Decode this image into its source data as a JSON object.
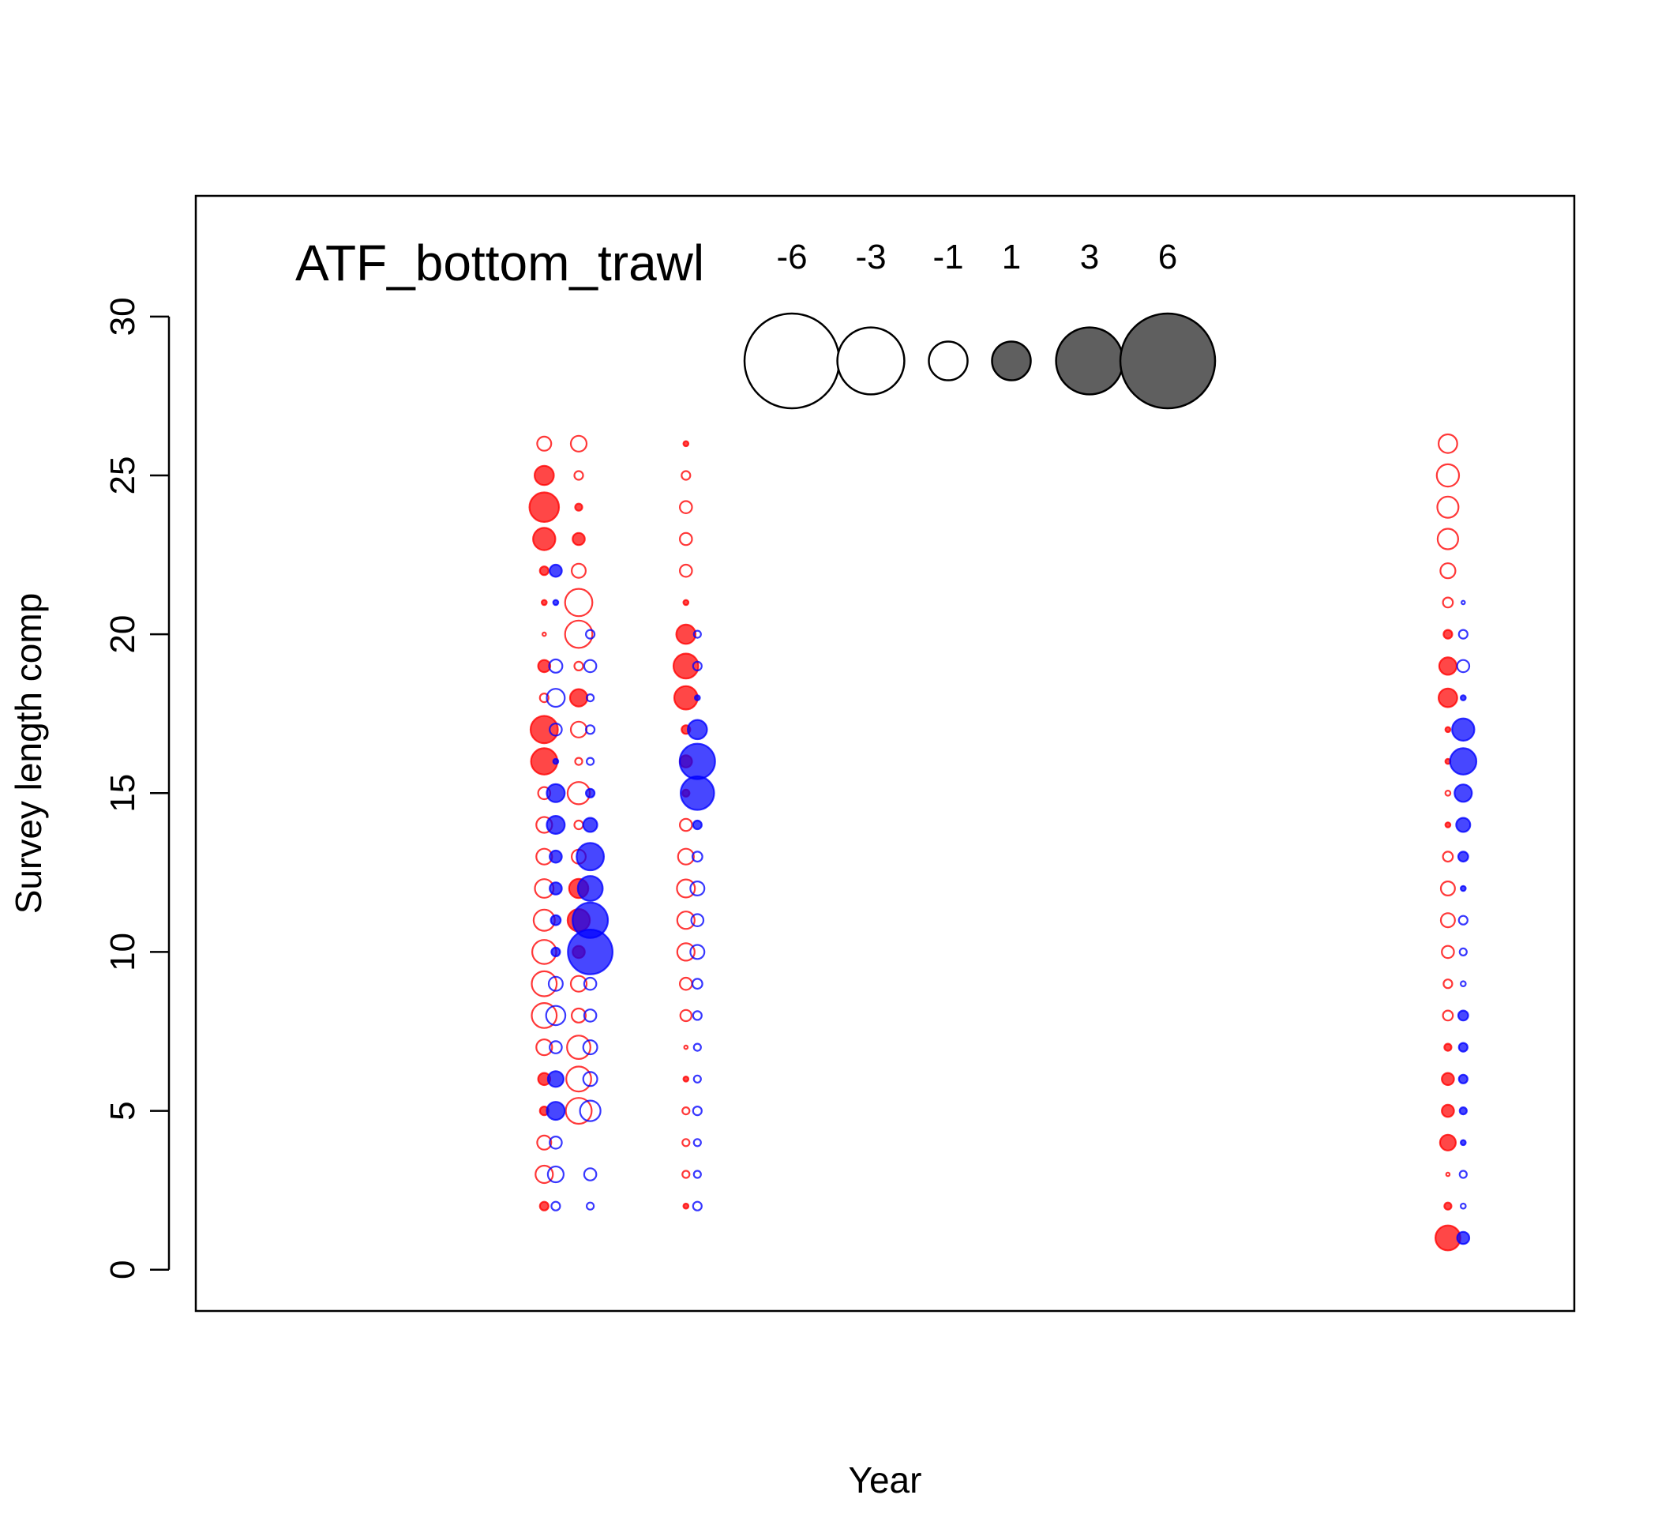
{
  "chart_data": {
    "type": "scatter",
    "subtype": "bubble",
    "panel_label": "ATF_bottom_trawl",
    "xlabel": "Year",
    "ylabel": "Survey length comp",
    "xlim": [
      1978,
      1996
    ],
    "ylim": [
      -1.3,
      33.8
    ],
    "yticks": [
      0,
      5,
      10,
      15,
      20,
      25,
      30
    ],
    "x_ticks_shown": false,
    "grid": false,
    "legend": {
      "placement": "top-center",
      "entries": [
        {
          "label": "-6",
          "value": -6
        },
        {
          "label": "-3",
          "value": -3
        },
        {
          "label": "-1",
          "value": -1
        },
        {
          "label": "1",
          "value": 1
        },
        {
          "label": "3",
          "value": 3
        },
        {
          "label": "6",
          "value": 6
        }
      ],
      "negative_style": "open",
      "positive_style": "filled",
      "fill_color": "#5f5f5f"
    },
    "colors": {
      "series_1": "#ff0000",
      "series_2": "#0000ff"
    },
    "series": [
      {
        "color": "#ff0000",
        "points": [
          {
            "x": 1982.55,
            "y": 26,
            "v": -0.8
          },
          {
            "x": 1982.55,
            "y": 25,
            "v": 1.5
          },
          {
            "x": 1982.55,
            "y": 24,
            "v": 3.5
          },
          {
            "x": 1982.55,
            "y": 23,
            "v": 2.0
          },
          {
            "x": 1982.55,
            "y": 22,
            "v": 0.3
          },
          {
            "x": 1982.55,
            "y": 21,
            "v": 0.1
          },
          {
            "x": 1982.55,
            "y": 20,
            "v": -0.05
          },
          {
            "x": 1982.55,
            "y": 19,
            "v": 0.6
          },
          {
            "x": 1982.55,
            "y": 18,
            "v": -0.3
          },
          {
            "x": 1982.55,
            "y": 17,
            "v": 3.0
          },
          {
            "x": 1982.55,
            "y": 16,
            "v": 2.8
          },
          {
            "x": 1982.55,
            "y": 15,
            "v": -0.6
          },
          {
            "x": 1982.55,
            "y": 14,
            "v": -1.0
          },
          {
            "x": 1982.55,
            "y": 13,
            "v": -1.0
          },
          {
            "x": 1982.55,
            "y": 12,
            "v": -1.4
          },
          {
            "x": 1982.55,
            "y": 11,
            "v": -1.8
          },
          {
            "x": 1982.55,
            "y": 10,
            "v": -2.3
          },
          {
            "x": 1982.55,
            "y": 9,
            "v": -2.5
          },
          {
            "x": 1982.55,
            "y": 8,
            "v": -2.5
          },
          {
            "x": 1982.55,
            "y": 7,
            "v": -1.0
          },
          {
            "x": 1982.55,
            "y": 6,
            "v": 0.6
          },
          {
            "x": 1982.55,
            "y": 5,
            "v": 0.3
          },
          {
            "x": 1982.55,
            "y": 4,
            "v": -0.8
          },
          {
            "x": 1982.55,
            "y": 3,
            "v": -1.2
          },
          {
            "x": 1982.55,
            "y": 2,
            "v": 0.3
          },
          {
            "x": 1983.0,
            "y": 26,
            "v": -1.0
          },
          {
            "x": 1983.0,
            "y": 25,
            "v": -0.3
          },
          {
            "x": 1983.0,
            "y": 24,
            "v": 0.2
          },
          {
            "x": 1983.0,
            "y": 23,
            "v": 0.6
          },
          {
            "x": 1983.0,
            "y": 22,
            "v": -0.8
          },
          {
            "x": 1983.0,
            "y": 21,
            "v": -3.0
          },
          {
            "x": 1983.0,
            "y": 20,
            "v": -3.0
          },
          {
            "x": 1983.0,
            "y": 19,
            "v": -0.3
          },
          {
            "x": 1983.0,
            "y": 18,
            "v": 1.2
          },
          {
            "x": 1983.0,
            "y": 17,
            "v": -1.0
          },
          {
            "x": 1983.0,
            "y": 16,
            "v": -0.2
          },
          {
            "x": 1983.0,
            "y": 15,
            "v": -2.0
          },
          {
            "x": 1983.0,
            "y": 14,
            "v": -0.3
          },
          {
            "x": 1983.0,
            "y": 13,
            "v": -0.8
          },
          {
            "x": 1983.0,
            "y": 12,
            "v": 1.5
          },
          {
            "x": 1983.0,
            "y": 11,
            "v": 2.0
          },
          {
            "x": 1983.0,
            "y": 10,
            "v": 0.6
          },
          {
            "x": 1983.0,
            "y": 9,
            "v": -1.0
          },
          {
            "x": 1983.0,
            "y": 8,
            "v": -0.8
          },
          {
            "x": 1983.0,
            "y": 7,
            "v": -2.2
          },
          {
            "x": 1983.0,
            "y": 6,
            "v": -2.5
          },
          {
            "x": 1983.0,
            "y": 5,
            "v": -2.7
          },
          {
            "x": 1984.4,
            "y": 26,
            "v": 0.1
          },
          {
            "x": 1984.4,
            "y": 25,
            "v": -0.3
          },
          {
            "x": 1984.4,
            "y": 24,
            "v": -0.6
          },
          {
            "x": 1984.4,
            "y": 23,
            "v": -0.6
          },
          {
            "x": 1984.4,
            "y": 22,
            "v": -0.6
          },
          {
            "x": 1984.4,
            "y": 21,
            "v": 0.1
          },
          {
            "x": 1984.4,
            "y": 20,
            "v": 1.5
          },
          {
            "x": 1984.4,
            "y": 19,
            "v": 2.5
          },
          {
            "x": 1984.4,
            "y": 18,
            "v": 2.2
          },
          {
            "x": 1984.4,
            "y": 17,
            "v": 0.3
          },
          {
            "x": 1984.4,
            "y": 16,
            "v": 0.6
          },
          {
            "x": 1984.4,
            "y": 15,
            "v": 0.2
          },
          {
            "x": 1984.4,
            "y": 14,
            "v": -0.6
          },
          {
            "x": 1984.4,
            "y": 13,
            "v": -1.0
          },
          {
            "x": 1984.4,
            "y": 12,
            "v": -1.3
          },
          {
            "x": 1984.4,
            "y": 11,
            "v": -1.2
          },
          {
            "x": 1984.4,
            "y": 10,
            "v": -1.2
          },
          {
            "x": 1984.4,
            "y": 9,
            "v": -0.6
          },
          {
            "x": 1984.4,
            "y": 8,
            "v": -0.5
          },
          {
            "x": 1984.4,
            "y": 7,
            "v": -0.05
          },
          {
            "x": 1984.4,
            "y": 6,
            "v": 0.1
          },
          {
            "x": 1984.4,
            "y": 5,
            "v": -0.2
          },
          {
            "x": 1984.4,
            "y": 4,
            "v": -0.2
          },
          {
            "x": 1984.4,
            "y": 3,
            "v": -0.2
          },
          {
            "x": 1984.4,
            "y": 2,
            "v": 0.1
          },
          {
            "x": 1994.35,
            "y": 26,
            "v": -1.4
          },
          {
            "x": 1994.35,
            "y": 25,
            "v": -2.0
          },
          {
            "x": 1994.35,
            "y": 24,
            "v": -1.8
          },
          {
            "x": 1994.35,
            "y": 23,
            "v": -1.7
          },
          {
            "x": 1994.35,
            "y": 22,
            "v": -0.9
          },
          {
            "x": 1994.35,
            "y": 21,
            "v": -0.4
          },
          {
            "x": 1994.35,
            "y": 20,
            "v": 0.3
          },
          {
            "x": 1994.35,
            "y": 19,
            "v": 1.2
          },
          {
            "x": 1994.35,
            "y": 18,
            "v": 1.4
          },
          {
            "x": 1994.35,
            "y": 17,
            "v": 0.1
          },
          {
            "x": 1994.35,
            "y": 16,
            "v": 0.1
          },
          {
            "x": 1994.35,
            "y": 15,
            "v": -0.1
          },
          {
            "x": 1994.35,
            "y": 14,
            "v": 0.1
          },
          {
            "x": 1994.35,
            "y": 13,
            "v": -0.4
          },
          {
            "x": 1994.35,
            "y": 12,
            "v": -0.8
          },
          {
            "x": 1994.35,
            "y": 11,
            "v": -0.8
          },
          {
            "x": 1994.35,
            "y": 10,
            "v": -0.6
          },
          {
            "x": 1994.35,
            "y": 9,
            "v": -0.3
          },
          {
            "x": 1994.35,
            "y": 8,
            "v": -0.4
          },
          {
            "x": 1994.35,
            "y": 7,
            "v": 0.2
          },
          {
            "x": 1994.35,
            "y": 6,
            "v": 0.6
          },
          {
            "x": 1994.35,
            "y": 5,
            "v": 0.6
          },
          {
            "x": 1994.35,
            "y": 4,
            "v": 1.0
          },
          {
            "x": 1994.35,
            "y": 3,
            "v": -0.05
          },
          {
            "x": 1994.35,
            "y": 2,
            "v": 0.2
          },
          {
            "x": 1994.35,
            "y": 1,
            "v": 2.5
          }
        ]
      },
      {
        "color": "#0000ff",
        "points": [
          {
            "x": 1982.7,
            "y": 22,
            "v": 0.6
          },
          {
            "x": 1982.7,
            "y": 21,
            "v": 0.1
          },
          {
            "x": 1982.7,
            "y": 19,
            "v": -0.7
          },
          {
            "x": 1982.7,
            "y": 18,
            "v": -1.3
          },
          {
            "x": 1982.7,
            "y": 17,
            "v": -0.6
          },
          {
            "x": 1982.7,
            "y": 16,
            "v": 0.1
          },
          {
            "x": 1982.7,
            "y": 15,
            "v": 1.3
          },
          {
            "x": 1982.7,
            "y": 14,
            "v": 1.3
          },
          {
            "x": 1982.7,
            "y": 13,
            "v": 0.6
          },
          {
            "x": 1982.7,
            "y": 12,
            "v": 0.6
          },
          {
            "x": 1982.7,
            "y": 11,
            "v": 0.4
          },
          {
            "x": 1982.7,
            "y": 10,
            "v": 0.3
          },
          {
            "x": 1982.7,
            "y": 9,
            "v": -0.8
          },
          {
            "x": 1982.7,
            "y": 8,
            "v": -1.5
          },
          {
            "x": 1982.7,
            "y": 7,
            "v": -0.6
          },
          {
            "x": 1982.7,
            "y": 6,
            "v": 1.0
          },
          {
            "x": 1982.7,
            "y": 5,
            "v": 1.3
          },
          {
            "x": 1982.7,
            "y": 4,
            "v": -0.6
          },
          {
            "x": 1982.7,
            "y": 3,
            "v": -1.0
          },
          {
            "x": 1982.7,
            "y": 2,
            "v": -0.3
          },
          {
            "x": 1983.15,
            "y": 20,
            "v": -0.3
          },
          {
            "x": 1983.15,
            "y": 19,
            "v": -0.6
          },
          {
            "x": 1983.15,
            "y": 18,
            "v": -0.2
          },
          {
            "x": 1983.15,
            "y": 17,
            "v": -0.3
          },
          {
            "x": 1983.15,
            "y": 16,
            "v": -0.2
          },
          {
            "x": 1983.15,
            "y": 15,
            "v": 0.3
          },
          {
            "x": 1983.15,
            "y": 14,
            "v": 0.8
          },
          {
            "x": 1983.15,
            "y": 13,
            "v": 3.0
          },
          {
            "x": 1983.15,
            "y": 12,
            "v": 2.5
          },
          {
            "x": 1983.15,
            "y": 11,
            "v": 5.0
          },
          {
            "x": 1983.15,
            "y": 10,
            "v": 8.0
          },
          {
            "x": 1983.15,
            "y": 9,
            "v": -0.6
          },
          {
            "x": 1983.15,
            "y": 8,
            "v": -0.6
          },
          {
            "x": 1983.15,
            "y": 7,
            "v": -0.8
          },
          {
            "x": 1983.15,
            "y": 6,
            "v": -0.8
          },
          {
            "x": 1983.15,
            "y": 5,
            "v": -1.7
          },
          {
            "x": 1983.15,
            "y": 3,
            "v": -0.6
          },
          {
            "x": 1983.15,
            "y": 2,
            "v": -0.2
          },
          {
            "x": 1984.55,
            "y": 20,
            "v": -0.2
          },
          {
            "x": 1984.55,
            "y": 19,
            "v": -0.3
          },
          {
            "x": 1984.55,
            "y": 18,
            "v": 0.1
          },
          {
            "x": 1984.55,
            "y": 17,
            "v": 1.5
          },
          {
            "x": 1984.55,
            "y": 16,
            "v": 5.0
          },
          {
            "x": 1984.55,
            "y": 15,
            "v": 4.5
          },
          {
            "x": 1984.55,
            "y": 14,
            "v": 0.3
          },
          {
            "x": 1984.55,
            "y": 13,
            "v": -0.4
          },
          {
            "x": 1984.55,
            "y": 12,
            "v": -0.8
          },
          {
            "x": 1984.55,
            "y": 11,
            "v": -0.6
          },
          {
            "x": 1984.55,
            "y": 10,
            "v": -0.8
          },
          {
            "x": 1984.55,
            "y": 9,
            "v": -0.4
          },
          {
            "x": 1984.55,
            "y": 8,
            "v": -0.3
          },
          {
            "x": 1984.55,
            "y": 7,
            "v": -0.2
          },
          {
            "x": 1984.55,
            "y": 6,
            "v": -0.2
          },
          {
            "x": 1984.55,
            "y": 5,
            "v": -0.3
          },
          {
            "x": 1984.55,
            "y": 4,
            "v": -0.2
          },
          {
            "x": 1984.55,
            "y": 3,
            "v": -0.2
          },
          {
            "x": 1984.55,
            "y": 2,
            "v": -0.3
          },
          {
            "x": 1994.55,
            "y": 21,
            "v": -0.05
          },
          {
            "x": 1994.55,
            "y": 20,
            "v": -0.3
          },
          {
            "x": 1994.55,
            "y": 19,
            "v": -0.6
          },
          {
            "x": 1994.55,
            "y": 18,
            "v": 0.1
          },
          {
            "x": 1994.55,
            "y": 17,
            "v": 2.0
          },
          {
            "x": 1994.55,
            "y": 16,
            "v": 2.8
          },
          {
            "x": 1994.55,
            "y": 15,
            "v": 1.2
          },
          {
            "x": 1994.55,
            "y": 14,
            "v": 0.8
          },
          {
            "x": 1994.55,
            "y": 13,
            "v": 0.4
          },
          {
            "x": 1994.55,
            "y": 12,
            "v": 0.1
          },
          {
            "x": 1994.55,
            "y": 11,
            "v": -0.3
          },
          {
            "x": 1994.55,
            "y": 10,
            "v": -0.2
          },
          {
            "x": 1994.55,
            "y": 9,
            "v": -0.1
          },
          {
            "x": 1994.55,
            "y": 8,
            "v": 0.4
          },
          {
            "x": 1994.55,
            "y": 7,
            "v": 0.3
          },
          {
            "x": 1994.55,
            "y": 6,
            "v": 0.3
          },
          {
            "x": 1994.55,
            "y": 5,
            "v": 0.2
          },
          {
            "x": 1994.55,
            "y": 4,
            "v": 0.1
          },
          {
            "x": 1994.55,
            "y": 3,
            "v": -0.2
          },
          {
            "x": 1994.55,
            "y": 2,
            "v": -0.1
          },
          {
            "x": 1994.55,
            "y": 1,
            "v": 0.6
          }
        ]
      }
    ]
  }
}
